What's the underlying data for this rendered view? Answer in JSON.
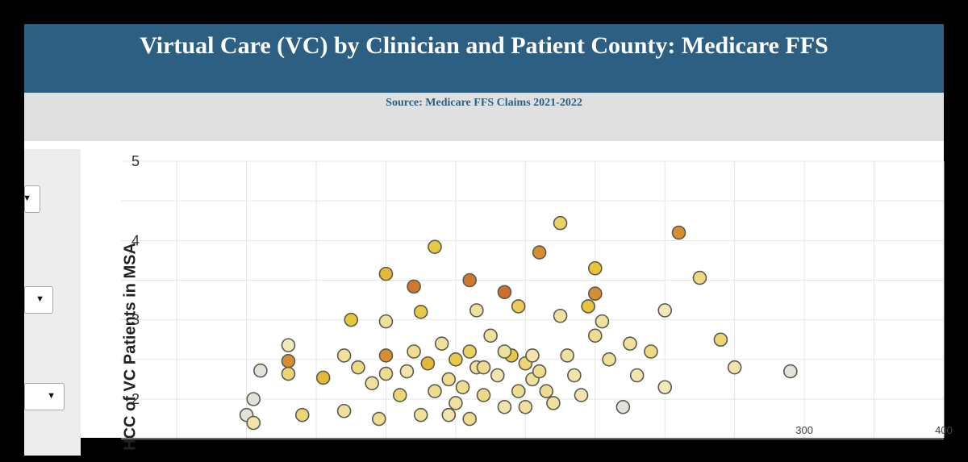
{
  "header": {
    "title": "Virtual Care (VC) by Clinician and Patient County: Medicare FFS",
    "source": "Source: Medicare FFS Claims 2021-2022"
  },
  "sidebar": {
    "dropdown_icon": "triangle-down",
    "dropdowns": [
      {},
      {},
      {}
    ]
  },
  "colors": {
    "header_bg": "#2c5f82",
    "subheader_bg": "#e0e0e0",
    "low": "#f4ecc8",
    "mid": "#e6c53a",
    "high": "#c8572a"
  },
  "chart_data": {
    "type": "scatter",
    "title": "",
    "xlabel": "",
    "ylabel": "HCC of VC Patients in MSA",
    "ylim": [
      1.6,
      5
    ],
    "xlim": [
      -190,
      400
    ],
    "y_ticks": [
      2,
      3,
      4,
      5
    ],
    "x_ticks_visible": [
      300,
      400
    ],
    "grid": true,
    "points": [
      {
        "x": 0,
        "y": 3.58,
        "c": 0.55
      },
      {
        "x": 20,
        "y": 3.42,
        "c": 0.85
      },
      {
        "x": 35,
        "y": 3.92,
        "c": 0.45
      },
      {
        "x": 60,
        "y": 3.5,
        "c": 0.85
      },
      {
        "x": 85,
        "y": 3.35,
        "c": 0.9
      },
      {
        "x": 110,
        "y": 3.85,
        "c": 0.75
      },
      {
        "x": 125,
        "y": 4.22,
        "c": 0.35
      },
      {
        "x": 150,
        "y": 3.65,
        "c": 0.5
      },
      {
        "x": 150,
        "y": 3.33,
        "c": 0.75
      },
      {
        "x": 145,
        "y": 3.17,
        "c": 0.5
      },
      {
        "x": 210,
        "y": 4.1,
        "c": 0.75
      },
      {
        "x": 225,
        "y": 3.53,
        "c": 0.25
      },
      {
        "x": -25,
        "y": 3.0,
        "c": 0.5
      },
      {
        "x": 0,
        "y": 2.98,
        "c": 0.15
      },
      {
        "x": 25,
        "y": 3.1,
        "c": 0.45
      },
      {
        "x": 65,
        "y": 3.12,
        "c": 0.15
      },
      {
        "x": 95,
        "y": 3.17,
        "c": 0.4
      },
      {
        "x": 125,
        "y": 3.05,
        "c": 0.15
      },
      {
        "x": 155,
        "y": 2.98,
        "c": 0.15
      },
      {
        "x": 200,
        "y": 3.12,
        "c": 0.05
      },
      {
        "x": -70,
        "y": 2.68,
        "c": 0.05
      },
      {
        "x": -70,
        "y": 2.48,
        "c": 0.75
      },
      {
        "x": -70,
        "y": 2.32,
        "c": 0.3
      },
      {
        "x": -45,
        "y": 2.27,
        "c": 0.55
      },
      {
        "x": -90,
        "y": 2.36,
        "c": 0.0
      },
      {
        "x": -95,
        "y": 2.0,
        "c": 0.0
      },
      {
        "x": 0,
        "y": 2.55,
        "c": 0.75
      },
      {
        "x": 0,
        "y": 2.32,
        "c": 0.2
      },
      {
        "x": 10,
        "y": 2.05,
        "c": 0.3
      },
      {
        "x": 20,
        "y": 2.6,
        "c": 0.2
      },
      {
        "x": 30,
        "y": 2.45,
        "c": 0.55
      },
      {
        "x": 40,
        "y": 2.7,
        "c": 0.15
      },
      {
        "x": 45,
        "y": 2.25,
        "c": 0.2
      },
      {
        "x": 50,
        "y": 2.5,
        "c": 0.45
      },
      {
        "x": 55,
        "y": 2.15,
        "c": 0.2
      },
      {
        "x": 60,
        "y": 2.6,
        "c": 0.35
      },
      {
        "x": 65,
        "y": 2.4,
        "c": 0.15
      },
      {
        "x": 70,
        "y": 2.05,
        "c": 0.25
      },
      {
        "x": 75,
        "y": 2.8,
        "c": 0.15
      },
      {
        "x": 80,
        "y": 2.3,
        "c": 0.1
      },
      {
        "x": 90,
        "y": 2.55,
        "c": 0.45
      },
      {
        "x": 95,
        "y": 2.1,
        "c": 0.2
      },
      {
        "x": 100,
        "y": 2.45,
        "c": 0.3
      },
      {
        "x": 105,
        "y": 2.25,
        "c": 0.15
      },
      {
        "x": 115,
        "y": 2.1,
        "c": 0.2
      },
      {
        "x": 120,
        "y": 1.95,
        "c": 0.15
      },
      {
        "x": 130,
        "y": 2.55,
        "c": 0.15
      },
      {
        "x": 140,
        "y": 2.05,
        "c": 0.1
      },
      {
        "x": 150,
        "y": 2.8,
        "c": 0.2
      },
      {
        "x": 160,
        "y": 2.5,
        "c": 0.15
      },
      {
        "x": 175,
        "y": 2.7,
        "c": 0.15
      },
      {
        "x": 180,
        "y": 2.3,
        "c": 0.1
      },
      {
        "x": 190,
        "y": 2.6,
        "c": 0.25
      },
      {
        "x": 200,
        "y": 2.15,
        "c": 0.05
      },
      {
        "x": 240,
        "y": 2.75,
        "c": 0.3
      },
      {
        "x": 250,
        "y": 2.4,
        "c": 0.1
      },
      {
        "x": 290,
        "y": 2.35,
        "c": 0.0
      },
      {
        "x": 170,
        "y": 1.9,
        "c": 0.0
      },
      {
        "x": -30,
        "y": 2.55,
        "c": 0.15
      },
      {
        "x": -20,
        "y": 2.4,
        "c": 0.25
      },
      {
        "x": -10,
        "y": 2.2,
        "c": 0.15
      },
      {
        "x": 15,
        "y": 2.35,
        "c": 0.1
      },
      {
        "x": 35,
        "y": 2.1,
        "c": 0.2
      },
      {
        "x": 50,
        "y": 1.95,
        "c": 0.15
      },
      {
        "x": 70,
        "y": 2.4,
        "c": 0.2
      },
      {
        "x": 85,
        "y": 2.6,
        "c": 0.15
      },
      {
        "x": 105,
        "y": 2.55,
        "c": 0.1
      },
      {
        "x": 110,
        "y": 2.35,
        "c": 0.2
      },
      {
        "x": 135,
        "y": 2.3,
        "c": 0.1
      },
      {
        "x": -60,
        "y": 1.8,
        "c": 0.3
      },
      {
        "x": -30,
        "y": 1.85,
        "c": 0.15
      },
      {
        "x": -5,
        "y": 1.75,
        "c": 0.2
      },
      {
        "x": 25,
        "y": 1.8,
        "c": 0.15
      },
      {
        "x": 45,
        "y": 1.8,
        "c": 0.1
      },
      {
        "x": 60,
        "y": 1.75,
        "c": 0.2
      },
      {
        "x": -100,
        "y": 1.8,
        "c": 0.0
      },
      {
        "x": -95,
        "y": 1.7,
        "c": 0.1
      },
      {
        "x": 85,
        "y": 1.9,
        "c": 0.1
      },
      {
        "x": 100,
        "y": 1.9,
        "c": 0.15
      }
    ]
  }
}
